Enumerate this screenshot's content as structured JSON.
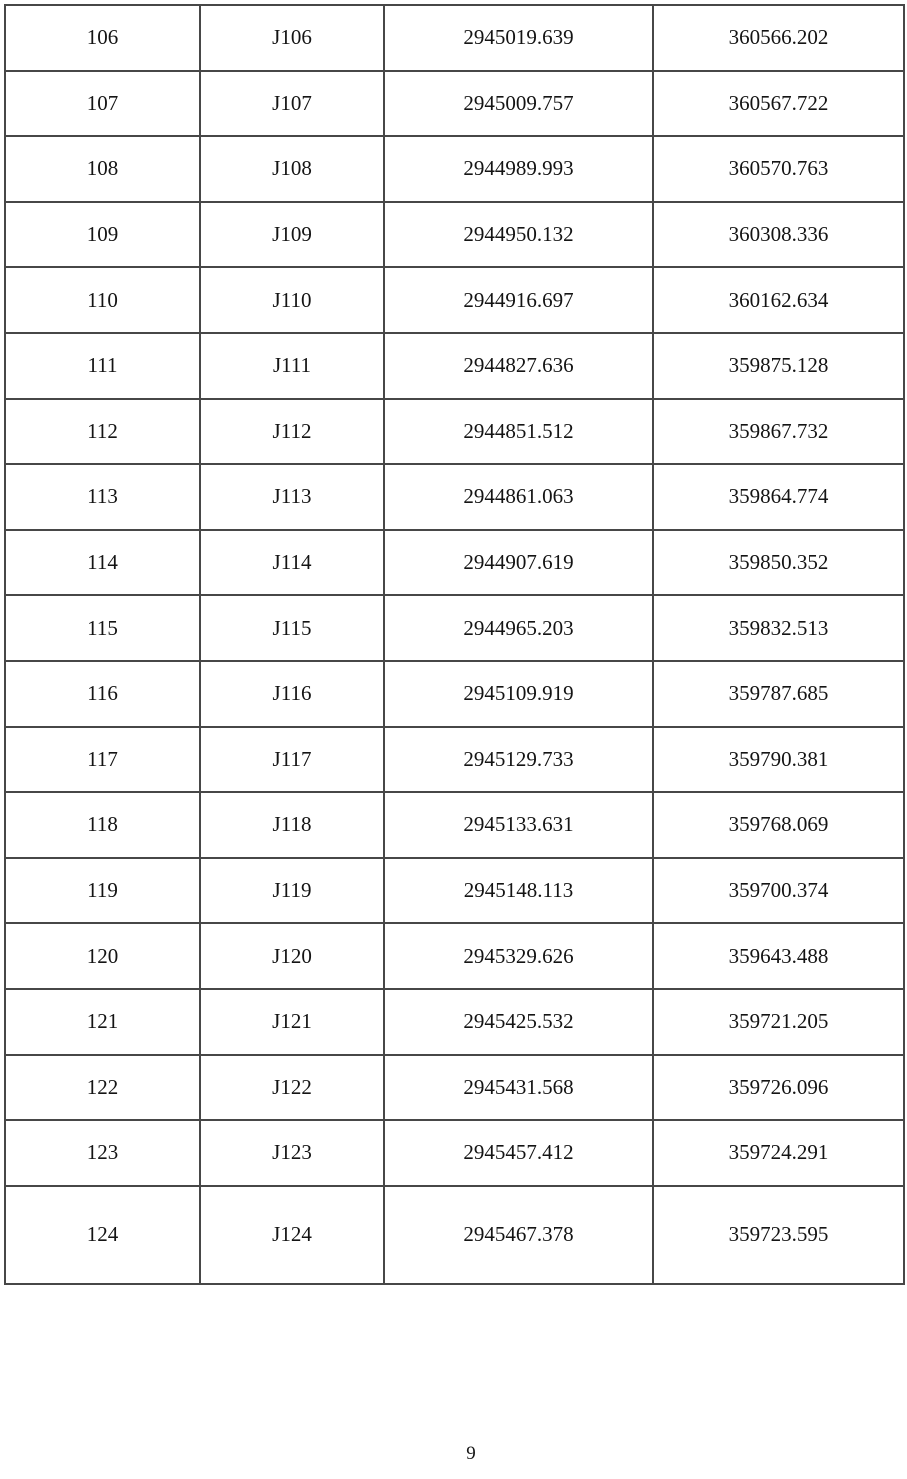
{
  "colors": {
    "background": "#ffffff",
    "table_border": "#474747",
    "text": "#141414"
  },
  "table": {
    "rows": [
      {
        "no": "106",
        "id": "J106",
        "x": "2945019.639",
        "y": "360566.202"
      },
      {
        "no": "107",
        "id": "J107",
        "x": "2945009.757",
        "y": "360567.722"
      },
      {
        "no": "108",
        "id": "J108",
        "x": "2944989.993",
        "y": "360570.763"
      },
      {
        "no": "109",
        "id": "J109",
        "x": "2944950.132",
        "y": "360308.336"
      },
      {
        "no": "110",
        "id": "J110",
        "x": "2944916.697",
        "y": "360162.634"
      },
      {
        "no": "111",
        "id": "J111",
        "x": "2944827.636",
        "y": "359875.128"
      },
      {
        "no": "112",
        "id": "J112",
        "x": "2944851.512",
        "y": "359867.732"
      },
      {
        "no": "113",
        "id": "J113",
        "x": "2944861.063",
        "y": "359864.774"
      },
      {
        "no": "114",
        "id": "J114",
        "x": "2944907.619",
        "y": "359850.352"
      },
      {
        "no": "115",
        "id": "J115",
        "x": "2944965.203",
        "y": "359832.513"
      },
      {
        "no": "116",
        "id": "J116",
        "x": "2945109.919",
        "y": "359787.685"
      },
      {
        "no": "117",
        "id": "J117",
        "x": "2945129.733",
        "y": "359790.381"
      },
      {
        "no": "118",
        "id": "J118",
        "x": "2945133.631",
        "y": "359768.069"
      },
      {
        "no": "119",
        "id": "J119",
        "x": "2945148.113",
        "y": "359700.374"
      },
      {
        "no": "120",
        "id": "J120",
        "x": "2945329.626",
        "y": "359643.488"
      },
      {
        "no": "121",
        "id": "J121",
        "x": "2945425.532",
        "y": "359721.205"
      },
      {
        "no": "122",
        "id": "J122",
        "x": "2945431.568",
        "y": "359726.096"
      },
      {
        "no": "123",
        "id": "J123",
        "x": "2945457.412",
        "y": "359724.291"
      },
      {
        "no": "124",
        "id": "J124",
        "x": "2945467.378",
        "y": "359723.595"
      }
    ]
  },
  "footer": {
    "page_number": "9"
  }
}
